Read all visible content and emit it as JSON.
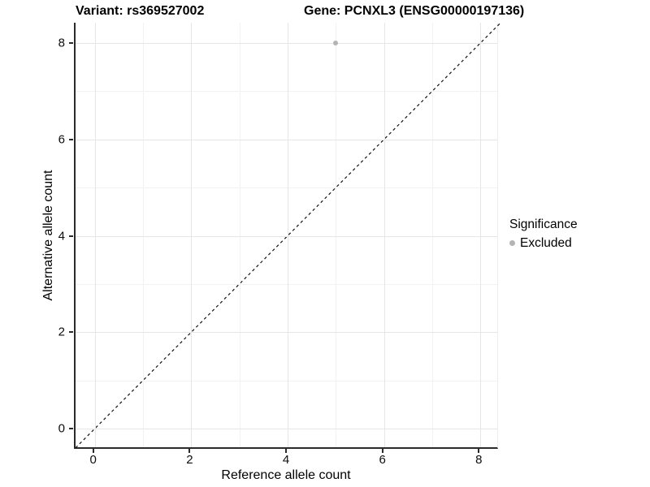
{
  "chart_data": {
    "type": "scatter",
    "title_left": "Variant: rs369527002",
    "title_right": "Gene: PCNXL3 (ENSG00000197136)",
    "xlabel": "Reference allele count",
    "ylabel": "Alternative allele count",
    "xlim": [
      -0.4,
      8.4
    ],
    "ylim": [
      -0.42,
      8.42
    ],
    "x_major_ticks": [
      0,
      2,
      4,
      6,
      8
    ],
    "y_major_ticks": [
      0,
      2,
      4,
      6,
      8
    ],
    "x_minor_ticks": [
      1,
      3,
      5,
      7
    ],
    "y_minor_ticks": [
      1,
      3,
      5,
      7
    ],
    "grid": true,
    "reference_line": {
      "type": "identity",
      "style": "dashed",
      "color": "#111111"
    },
    "series": [
      {
        "name": "Excluded",
        "color": "#b4b4b4",
        "points": [
          {
            "x": 5,
            "y": 8
          }
        ]
      }
    ],
    "legend": {
      "title": "Significance",
      "position": "right",
      "items": [
        {
          "label": "Excluded",
          "color": "#b4b4b4"
        }
      ]
    }
  },
  "colors": {
    "grid_major": "#e6e6e6",
    "grid_minor": "#f2f2f2",
    "axis_line": "#2b2b2b",
    "point_gray": "#b4b4b4"
  }
}
